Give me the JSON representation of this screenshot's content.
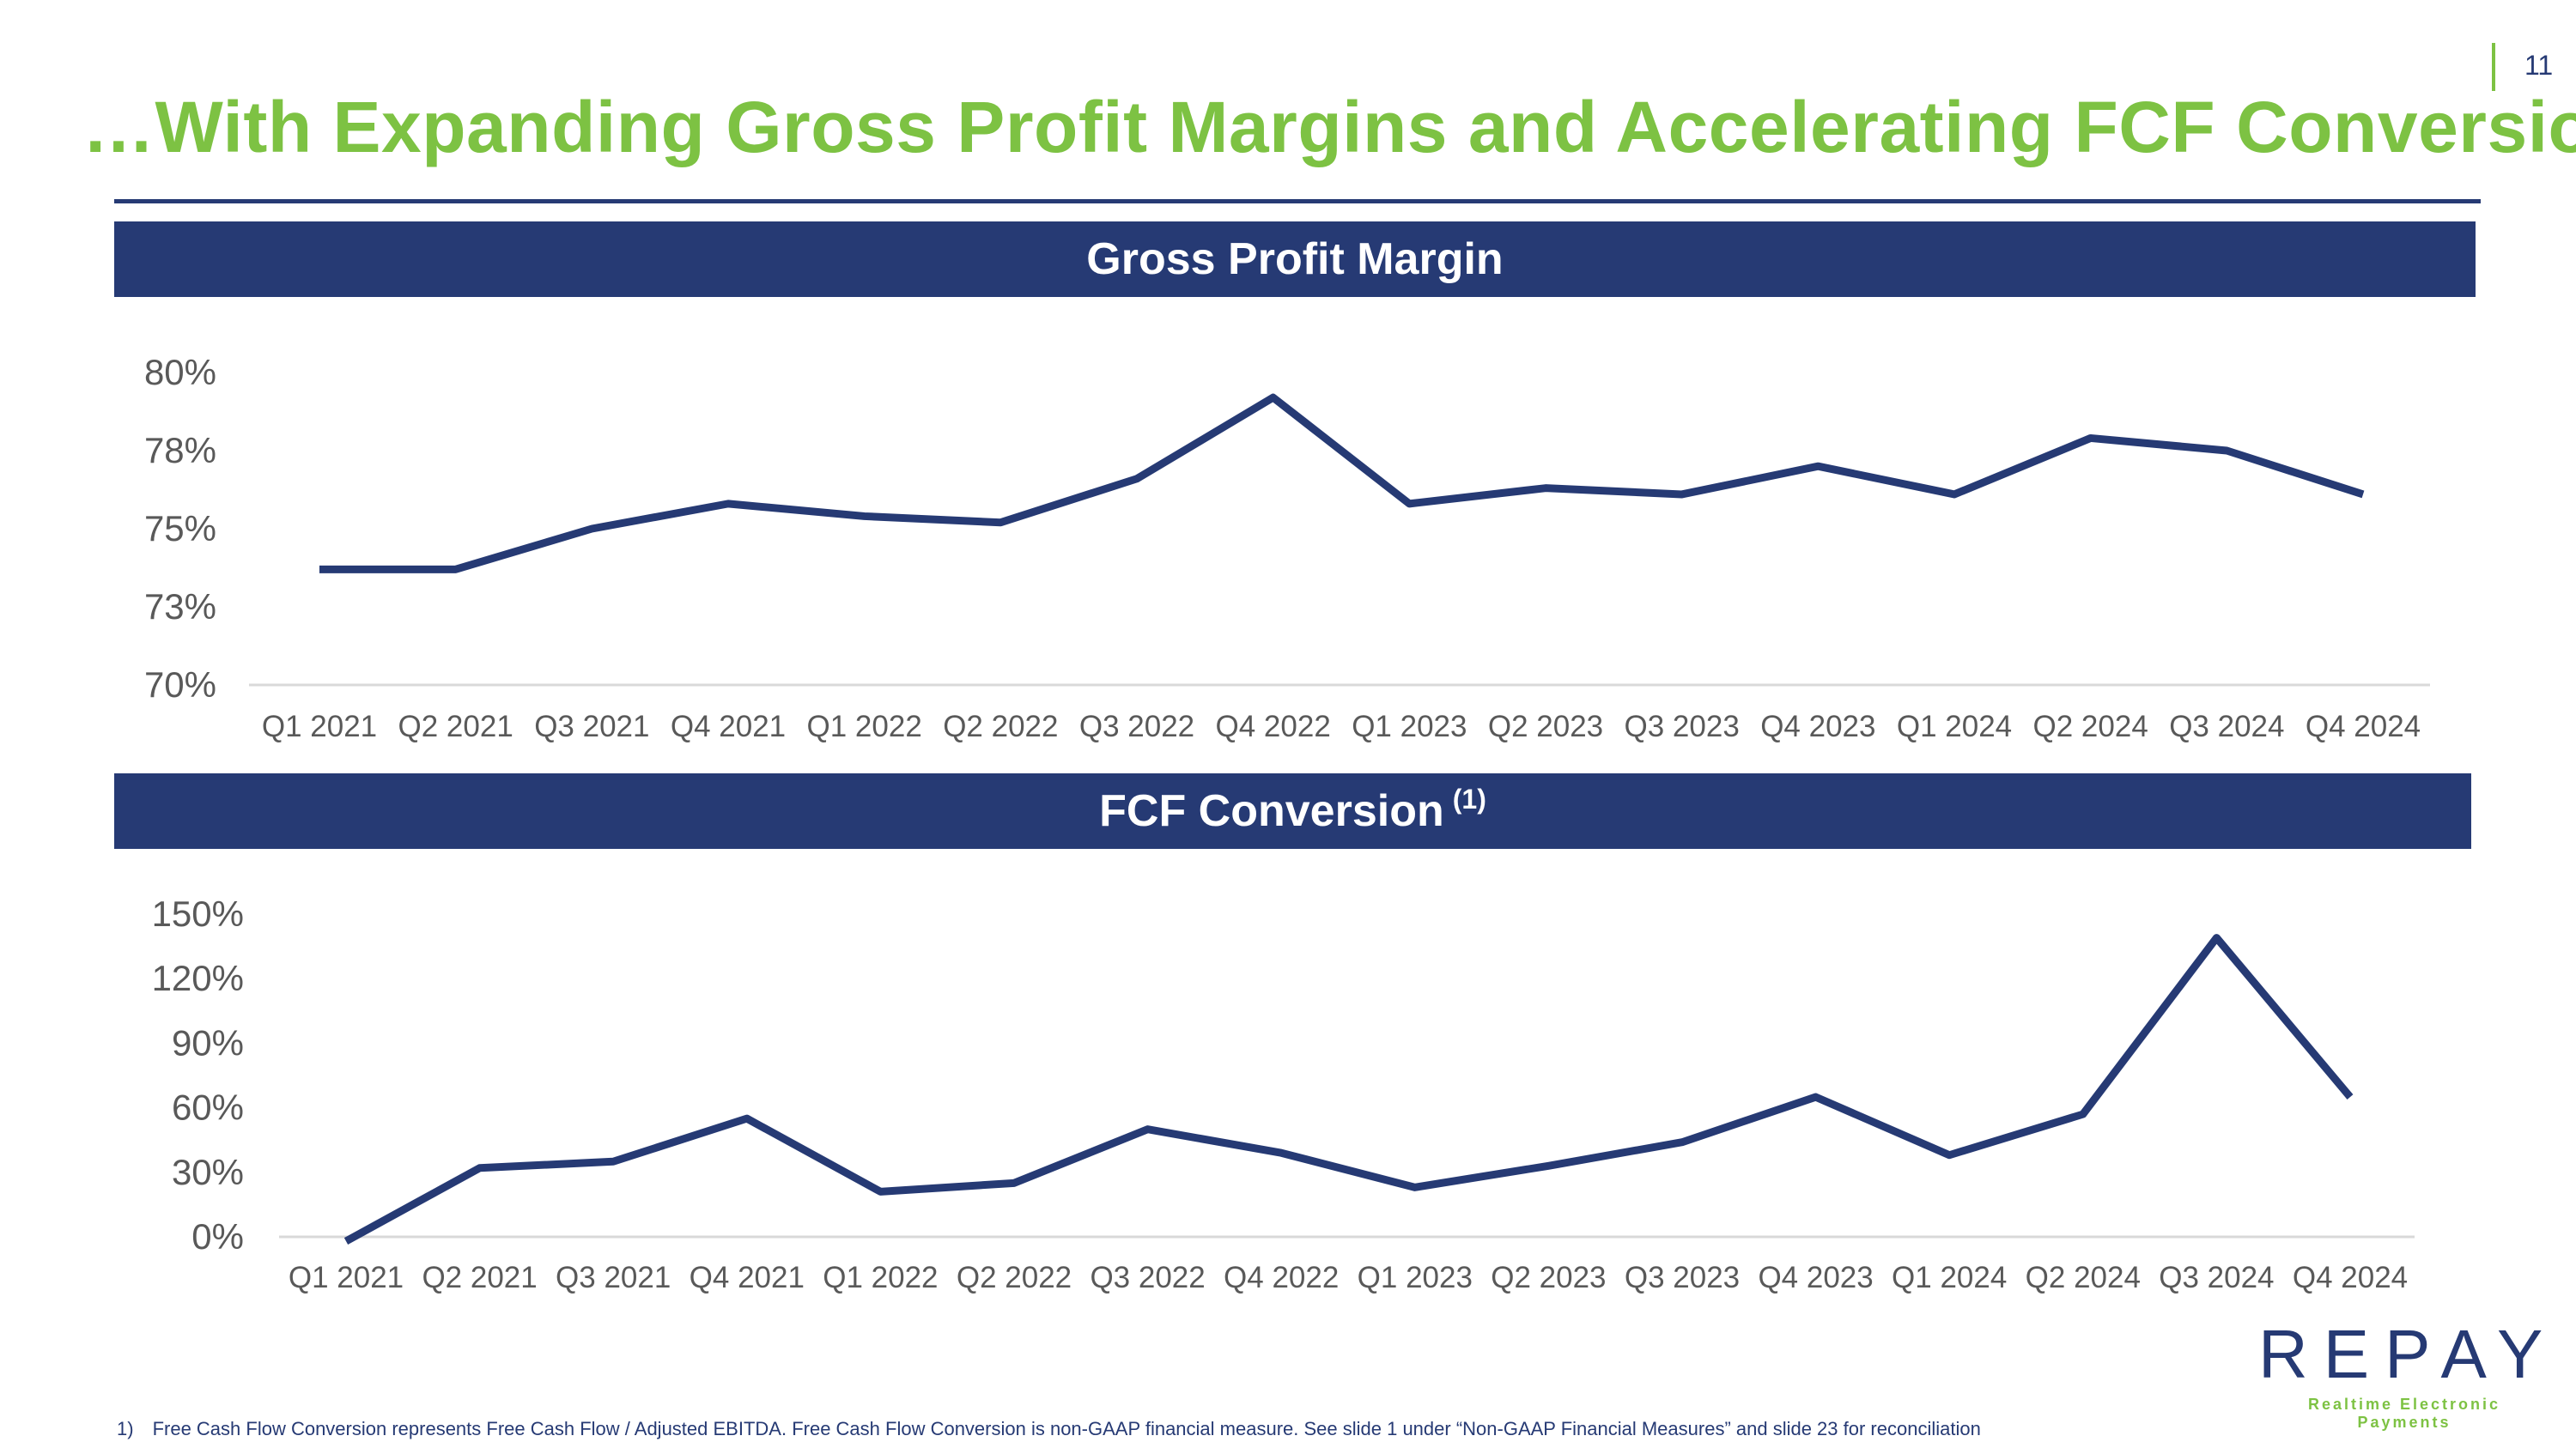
{
  "page_number": "11",
  "title": "…With Expanding Gross Profit Margins and Accelerating FCF Conversion",
  "sections": {
    "gross_profit": {
      "label": "Gross Profit Margin"
    },
    "fcf": {
      "label": "FCF Conversion",
      "superscript": "(1)"
    }
  },
  "colors": {
    "accent_green": "#7dc243",
    "navy": "#263a74",
    "axis": "#d9d9d9",
    "tick_text": "#595959"
  },
  "chart_data": [
    {
      "type": "line",
      "title": "Gross Profit Margin",
      "categories": [
        "Q1 2021",
        "Q2 2021",
        "Q3 2021",
        "Q4 2021",
        "Q1 2022",
        "Q2 2022",
        "Q3 2022",
        "Q4 2022",
        "Q1 2023",
        "Q2 2023",
        "Q3 2023",
        "Q4 2023",
        "Q1 2024",
        "Q2 2024",
        "Q3 2024",
        "Q4 2024"
      ],
      "series": [
        {
          "name": "Gross Profit Margin",
          "values": [
            73.7,
            73.7,
            75.0,
            75.8,
            75.4,
            75.2,
            76.6,
            79.2,
            75.8,
            76.3,
            76.1,
            77.0,
            76.1,
            77.9,
            77.5,
            76.1
          ]
        }
      ],
      "yticks": [
        "80%",
        "78%",
        "75%",
        "73%",
        "70%"
      ],
      "ylim": [
        70,
        80
      ],
      "xlabel": "",
      "ylabel": "",
      "grid": false
    },
    {
      "type": "line",
      "title": "FCF Conversion (1)",
      "categories": [
        "Q1 2021",
        "Q2 2021",
        "Q3 2021",
        "Q4 2021",
        "Q1 2022",
        "Q2 2022",
        "Q3 2022",
        "Q4 2022",
        "Q1 2023",
        "Q2 2023",
        "Q3 2023",
        "Q4 2023",
        "Q1 2024",
        "Q2 2024",
        "Q3 2024",
        "Q4 2024"
      ],
      "series": [
        {
          "name": "FCF Conversion",
          "values": [
            -2,
            32,
            35,
            55,
            21,
            25,
            50,
            39,
            23,
            33,
            44,
            65,
            38,
            57,
            139,
            65
          ]
        }
      ],
      "yticks": [
        "150%",
        "120%",
        "90%",
        "60%",
        "30%",
        "0%"
      ],
      "ylim": [
        0,
        150
      ],
      "xlabel": "",
      "ylabel": "",
      "grid": false
    }
  ],
  "logo": {
    "wordmark": "REPAY",
    "tagline": "Realtime Electronic Payments"
  },
  "footnote": {
    "marker": "1)",
    "text": "Free Cash Flow Conversion represents Free Cash Flow / Adjusted EBITDA. Free Cash Flow Conversion is non-GAAP financial measure. See slide 1 under “Non-GAAP Financial Measures” and slide 23 for reconciliation"
  }
}
